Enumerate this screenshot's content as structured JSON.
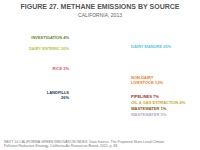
{
  "chart_data": {
    "type": "pie",
    "title": "FIGURE 27. METHANE EMISSIONS BY SOURCE",
    "subtitle": "CALIFORNIA, 2013",
    "categories": [
      "DAIRY MANURE 25%",
      "NON-DAIRY\nLIVESTOCK 13%",
      "PIPELINES 7%",
      "OIL & GAS EXTRACTION 4%",
      "WASTEWATER 1%",
      "WASTEWATER 5%",
      "LANDFILLS\n26%",
      "RICE 3%",
      "DAIRY ENTERIC 20%",
      "INVESTIGATION 4%"
    ],
    "values": [
      25,
      13,
      7,
      4,
      1,
      5,
      26,
      3,
      20,
      4
    ],
    "colors": [
      "#4fc8e8",
      "#f47920",
      "#a03030",
      "#c8a830",
      "#806010",
      "#b8a8cc",
      "#1a4060",
      "#e8506a",
      "#a8cc38",
      "#5a8a30"
    ],
    "annotations": [
      "NEXT 10 CALIFORNIA GREEN INNOVATION INDEX: Data Source: The Proposed Short-Lived Climate\nPollutant Reduction Strategy, California Air Resources Board, 2015, p. 88"
    ]
  }
}
